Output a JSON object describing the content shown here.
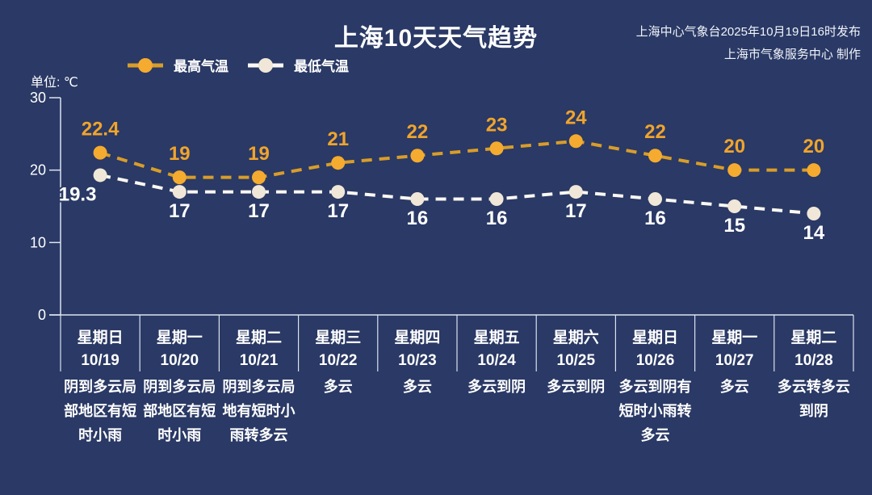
{
  "header": {
    "title": "上海10天天气趋势",
    "source_line1": "上海中心气象台2025年10月19日16时发布",
    "source_line2": "上海市气象服务中心 制作"
  },
  "unit_label": "单位: ℃",
  "legend": {
    "high_label": "最高气温",
    "low_label": "最低气温"
  },
  "colors": {
    "background": "#2A3965",
    "text": "#FFFFFF",
    "axis": "#DDE3EE",
    "high_marker": "#F5AB2F",
    "high_line": "#D89D2A",
    "high_label": "#F0A42C",
    "low_marker": "#F0E7D8",
    "low_line": "#FAF8F2",
    "low_label": "#FFFFFF"
  },
  "chart_data": {
    "type": "line",
    "title": "上海10天天气趋势",
    "ylabel": "单位: ℃",
    "ylim": [
      0,
      30
    ],
    "yticks": [
      0,
      10,
      20,
      30
    ],
    "grid": false,
    "legend_position": "top-left",
    "categories": [
      {
        "weekday": "星期日",
        "date": "10/19",
        "weather": "阴到多云局部地区有短时小雨"
      },
      {
        "weekday": "星期一",
        "date": "10/20",
        "weather": "阴到多云局部地区有短时小雨"
      },
      {
        "weekday": "星期二",
        "date": "10/21",
        "weather": "阴到多云局地有短时小雨转多云"
      },
      {
        "weekday": "星期三",
        "date": "10/22",
        "weather": "多云"
      },
      {
        "weekday": "星期四",
        "date": "10/23",
        "weather": "多云"
      },
      {
        "weekday": "星期五",
        "date": "10/24",
        "weather": "多云到阴"
      },
      {
        "weekday": "星期六",
        "date": "10/25",
        "weather": "多云到阴"
      },
      {
        "weekday": "星期日",
        "date": "10/26",
        "weather": "多云到阴有短时小雨转多云"
      },
      {
        "weekday": "星期一",
        "date": "10/27",
        "weather": "多云"
      },
      {
        "weekday": "星期二",
        "date": "10/28",
        "weather": "多云转多云到阴"
      }
    ],
    "series": [
      {
        "name": "最高气温",
        "values": [
          22.4,
          19,
          19,
          21,
          22,
          23,
          24,
          22,
          20,
          20
        ],
        "label_position": "above",
        "marker_color": "#F5AB2F",
        "line_color": "#D89D2A",
        "label_color": "#F0A42C",
        "label_dx": [
          0,
          0,
          0,
          0,
          0,
          0,
          0,
          0,
          0,
          0
        ]
      },
      {
        "name": "最低气温",
        "values": [
          19.3,
          17,
          17,
          17,
          16,
          16,
          17,
          16,
          15,
          14
        ],
        "label_position": "below",
        "marker_color": "#F0E7D8",
        "line_color": "#FAF8F2",
        "label_color": "#FFFFFF",
        "label_dx": [
          -28,
          0,
          0,
          0,
          0,
          0,
          0,
          0,
          0,
          0
        ]
      }
    ]
  }
}
